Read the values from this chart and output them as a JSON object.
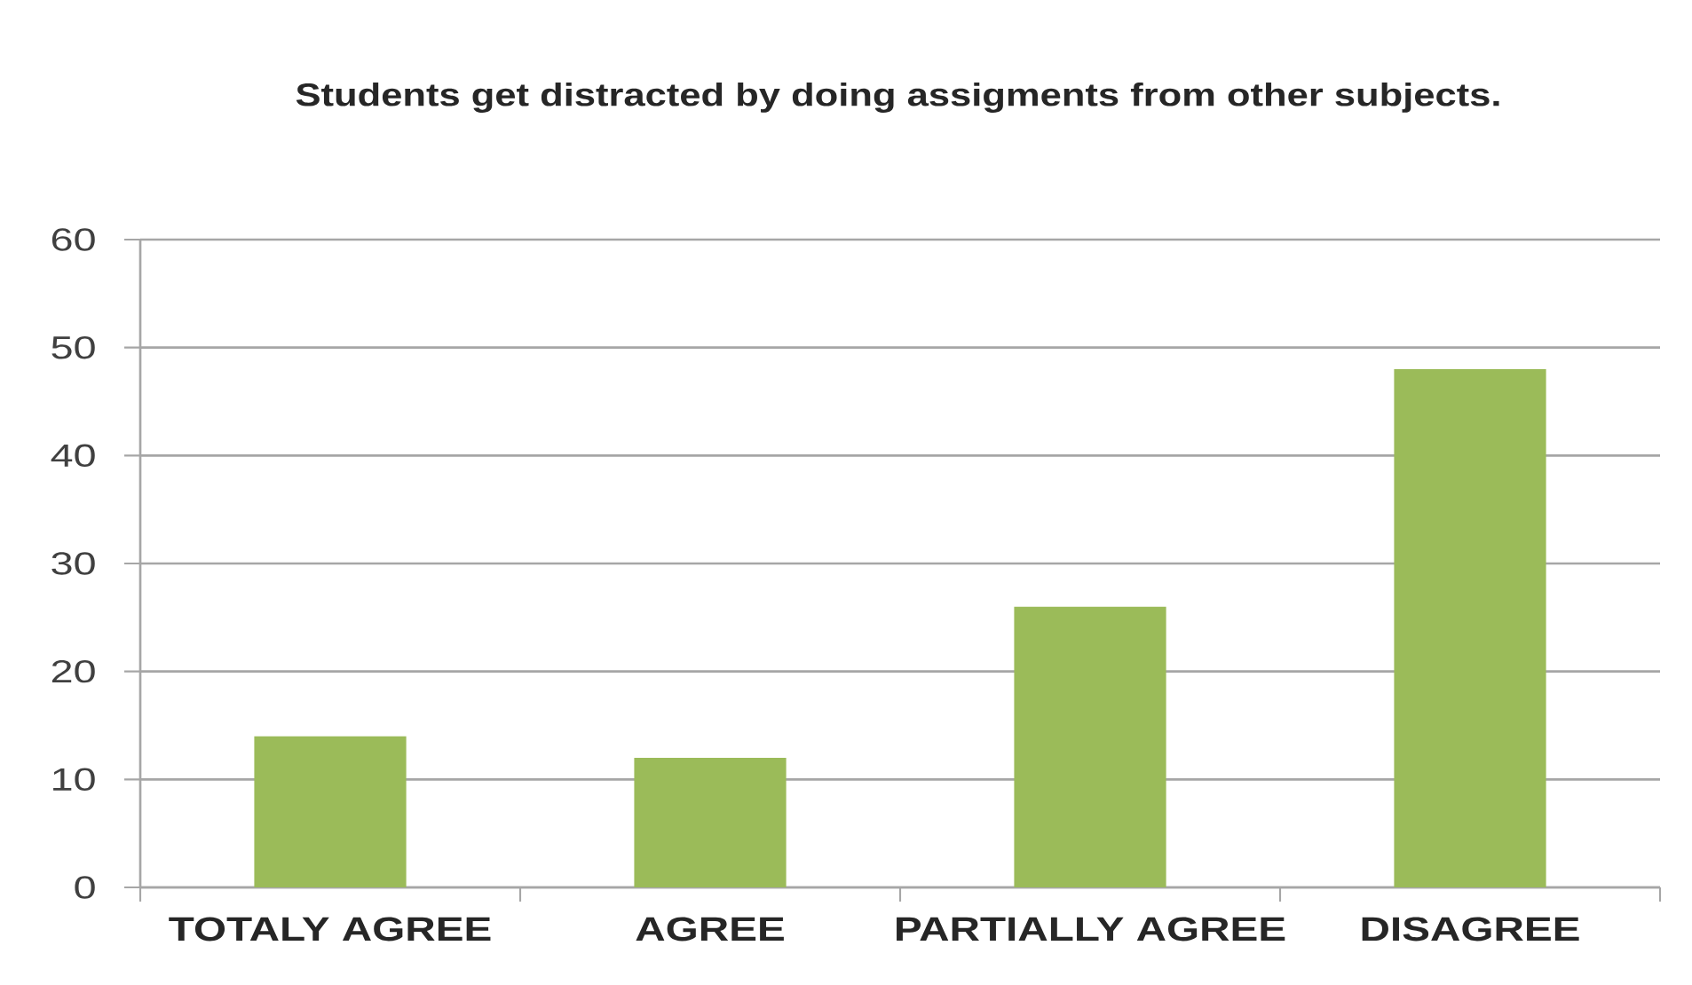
{
  "chart_data": {
    "type": "bar",
    "title": "Students get distracted by doing assigments from other subjects.",
    "categories": [
      "TOTALY AGREE",
      "AGREE",
      "PARTIALLY AGREE",
      "DISAGREE"
    ],
    "values": [
      14,
      12,
      26,
      48
    ],
    "color": "#9bbb59",
    "ylim": [
      0,
      60
    ],
    "yticks": [
      0,
      10,
      20,
      30,
      40,
      50,
      60
    ],
    "grid": "y"
  }
}
